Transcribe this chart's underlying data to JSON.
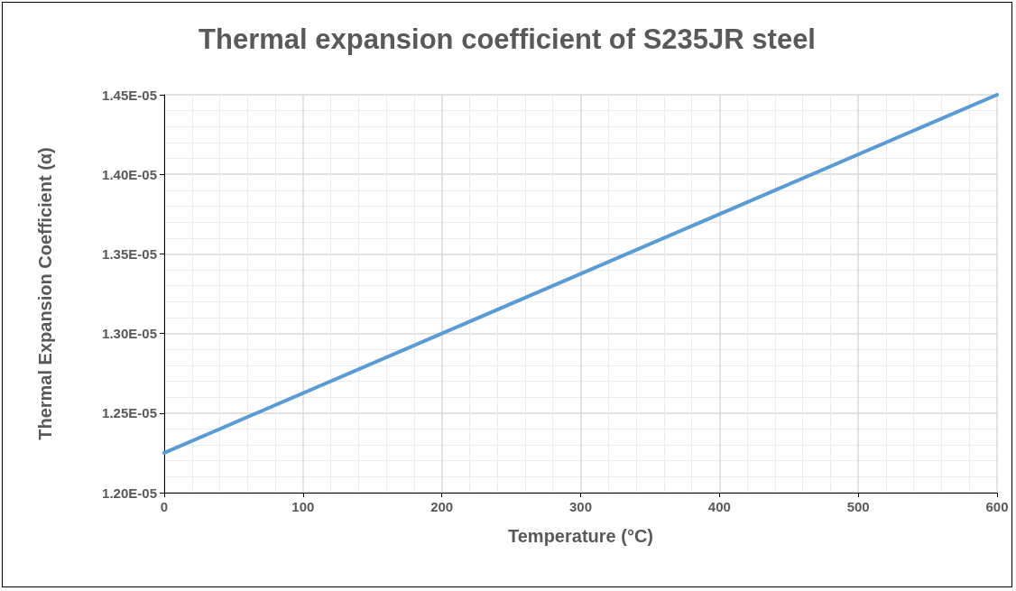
{
  "chart_data": {
    "type": "line",
    "title": "Thermal expansion coefficient of S235JR steel",
    "xlabel": "Temperature (°C)",
    "ylabel": "Thermal Expansion Coefficient (α)",
    "x": [
      0,
      200,
      400,
      600
    ],
    "series": [
      {
        "color": "#5b9bd5",
        "values": [
          1.225e-05,
          1.3e-05,
          1.375e-05,
          1.45e-05
        ]
      }
    ],
    "xlim": [
      0,
      600
    ],
    "xticks": [
      0,
      100,
      200,
      300,
      400,
      500,
      600
    ],
    "ylim": [
      1.2e-05,
      1.45e-05
    ],
    "yticks": [
      {
        "value": 1.2e-05,
        "label": "1.20E-05"
      },
      {
        "value": 1.25e-05,
        "label": "1.25E-05"
      },
      {
        "value": 1.3e-05,
        "label": "1.30E-05"
      },
      {
        "value": 1.35e-05,
        "label": "1.35E-05"
      },
      {
        "value": 1.4e-05,
        "label": "1.40E-05"
      },
      {
        "value": 1.45e-05,
        "label": "1.45E-05"
      }
    ],
    "grid": true,
    "marker": "none",
    "line_style": "solid"
  }
}
